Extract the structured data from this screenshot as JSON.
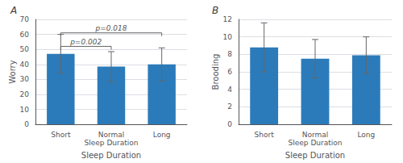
{
  "chart_data": [
    {
      "type": "bar",
      "title": "A",
      "categories": [
        "Short",
        "Normal\nSleep Duration",
        "Long"
      ],
      "values": [
        47,
        38.5,
        40
      ],
      "errors": [
        13,
        10,
        11
      ],
      "color": "#2b7bba",
      "xlabel": "Sleep Duration",
      "ylabel": "Worry",
      "ylim": [
        0,
        70
      ],
      "yticks": [
        0,
        10,
        20,
        30,
        40,
        50,
        60,
        70
      ],
      "grid": true,
      "annotations": [
        {
          "text": "p=0.002",
          "from": "Short",
          "to": "Normal\nSleep Duration",
          "y": 52
        },
        {
          "text": "p=0.018",
          "from": "Short",
          "to": "Long",
          "y": 61
        }
      ]
    },
    {
      "type": "bar",
      "title": "B",
      "categories": [
        "Short",
        "Normal\nSleep Duration",
        "Long"
      ],
      "values": [
        8.8,
        7.5,
        7.9
      ],
      "errors": [
        2.8,
        2.2,
        2.1
      ],
      "color": "#2b7bba",
      "xlabel": "Sleep Duration",
      "ylabel": "Brooding",
      "ylim": [
        0,
        12
      ],
      "yticks": [
        0,
        2,
        4,
        6,
        8,
        10,
        12
      ],
      "grid": true
    }
  ]
}
